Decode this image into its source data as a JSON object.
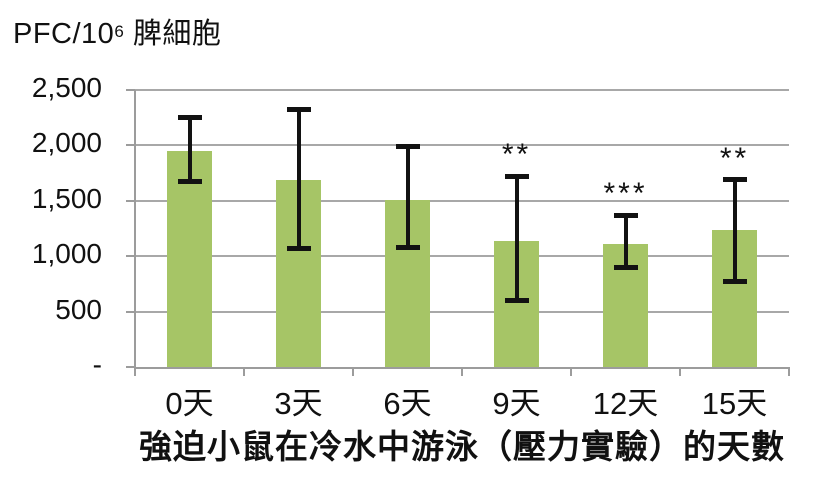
{
  "title": {
    "prefix": "PFC/10",
    "superscript": "6",
    "suffix": " 脾細胞"
  },
  "chart_data": {
    "type": "bar",
    "title": "PFC/10⁶ 脾細胞",
    "xlabel": "強迫小鼠在冷水中游泳（壓力實驗）的天數",
    "ylabel": "PFC/10⁶ 脾細胞",
    "categories": [
      "0天",
      "3天",
      "6天",
      "9天",
      "12天",
      "15天"
    ],
    "values": [
      1950,
      1690,
      1510,
      1140,
      1110,
      1240
    ],
    "error_top": [
      2250,
      2320,
      1990,
      1720,
      1370,
      1690
    ],
    "error_bottom": [
      1670,
      1070,
      1080,
      600,
      900,
      770
    ],
    "significance": [
      "",
      "",
      "",
      "**",
      "***",
      "**"
    ],
    "y_ticks": [
      {
        "value": 2500,
        "label": "2,500"
      },
      {
        "value": 2000,
        "label": "2,000"
      },
      {
        "value": 1500,
        "label": "1,500"
      },
      {
        "value": 1000,
        "label": "1,000"
      },
      {
        "value": 500,
        "label": "500"
      },
      {
        "value": 0,
        "label": "-"
      }
    ],
    "ylim": [
      0,
      2500
    ],
    "grid": true,
    "legend": "none",
    "bar_color": "#a6c566",
    "gridline_color": "#a8a8a8",
    "axis_color": "#9c9c9c",
    "error_bar_color": "#121212",
    "text_color": "#111111"
  }
}
